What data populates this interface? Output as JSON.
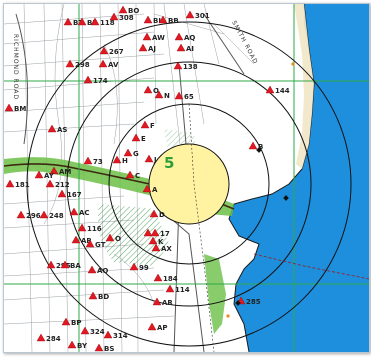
{
  "map": {
    "zone_label": "5",
    "street_labels": [
      "RICHMOND ROAD",
      "SMITH ROAD"
    ],
    "colors": {
      "water": "#1e8fdc",
      "zone_fill": "#fff2a0",
      "green_band": "#6cbf47",
      "grid_lines": "#2fa84a",
      "circles": "#111111",
      "markers": "#e01a22",
      "route": "#a01818"
    },
    "markers": [
      {
        "label": "BO"
      },
      {
        "label": "301"
      },
      {
        "label": "BT"
      },
      {
        "label": "BR"
      },
      {
        "label": "118"
      },
      {
        "label": "308"
      },
      {
        "label": "BI"
      },
      {
        "label": "BB"
      },
      {
        "label": "AW"
      },
      {
        "label": "AQ"
      },
      {
        "label": "AJ"
      },
      {
        "label": "AI"
      },
      {
        "label": "267"
      },
      {
        "label": "298"
      },
      {
        "label": "AV"
      },
      {
        "label": "138"
      },
      {
        "label": "174"
      },
      {
        "label": "144"
      },
      {
        "label": "O"
      },
      {
        "label": "N"
      },
      {
        "label": "65"
      },
      {
        "label": "BM"
      },
      {
        "label": "AS"
      },
      {
        "label": "F"
      },
      {
        "label": "E"
      },
      {
        "label": "G"
      },
      {
        "label": "H"
      },
      {
        "label": "J"
      },
      {
        "label": "B"
      },
      {
        "label": "73"
      },
      {
        "label": "AM"
      },
      {
        "label": "AY"
      },
      {
        "label": "212"
      },
      {
        "label": "181"
      },
      {
        "label": "C"
      },
      {
        "label": "A"
      },
      {
        "label": "167"
      },
      {
        "label": "AC"
      },
      {
        "label": "296"
      },
      {
        "label": "248"
      },
      {
        "label": "D"
      },
      {
        "label": "116"
      },
      {
        "label": "L"
      },
      {
        "label": "17"
      },
      {
        "label": "AB"
      },
      {
        "label": "GT"
      },
      {
        "label": "O"
      },
      {
        "label": "AX"
      },
      {
        "label": "K"
      },
      {
        "label": "295"
      },
      {
        "label": "BA"
      },
      {
        "label": "AO"
      },
      {
        "label": "99"
      },
      {
        "label": "184"
      },
      {
        "label": "114"
      },
      {
        "label": "AR"
      },
      {
        "label": "BD"
      },
      {
        "label": "285"
      },
      {
        "label": "BP"
      },
      {
        "label": "AP"
      },
      {
        "label": "324"
      },
      {
        "label": "314"
      },
      {
        "label": "284"
      },
      {
        "label": "BY"
      },
      {
        "label": "BS"
      }
    ]
  }
}
